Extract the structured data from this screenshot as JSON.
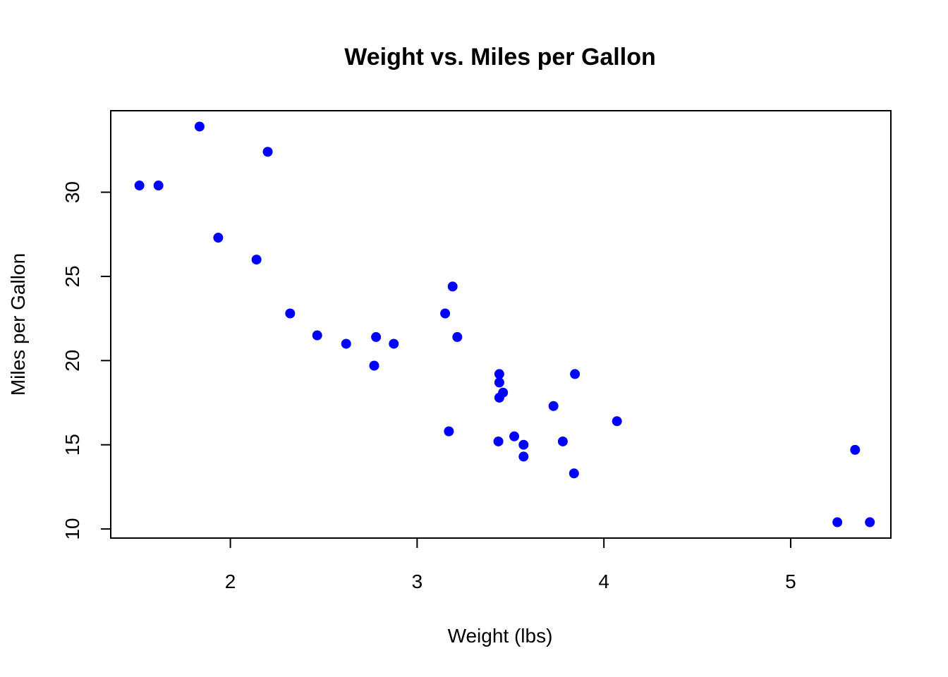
{
  "chart_data": {
    "type": "scatter",
    "title": "Weight vs. Miles per Gallon",
    "xlabel": "Weight (lbs)",
    "ylabel": "Miles per Gallon",
    "xlim": [
      1.3595,
      5.5365
    ],
    "ylim": [
      9.46,
      34.84
    ],
    "x_ticks": [
      2,
      3,
      4,
      5
    ],
    "y_ticks": [
      10,
      15,
      20,
      25,
      30
    ],
    "x_tick_labels": [
      "2",
      "3",
      "4",
      "5"
    ],
    "y_tick_labels": [
      "10",
      "15",
      "20",
      "25",
      "30"
    ],
    "grid": false,
    "legend": "none",
    "marker_color": "#0000FF",
    "series": [
      {
        "x": [
          2.62,
          2.875,
          2.32,
          3.215,
          3.44,
          3.46,
          3.57,
          3.19,
          3.15,
          3.44,
          3.44,
          4.07,
          3.73,
          3.78,
          5.25,
          5.424,
          5.345,
          2.2,
          1.615,
          1.835,
          2.465,
          3.52,
          3.435,
          3.84,
          3.845,
          1.935,
          2.14,
          1.513,
          3.17,
          2.77,
          3.57,
          2.78
        ],
        "y": [
          21.0,
          21.0,
          22.8,
          21.4,
          18.7,
          18.1,
          14.3,
          24.4,
          22.8,
          19.2,
          17.8,
          16.4,
          17.3,
          15.2,
          10.4,
          10.4,
          14.7,
          32.4,
          30.4,
          33.9,
          21.5,
          15.5,
          15.2,
          13.3,
          19.2,
          27.3,
          26.0,
          30.4,
          15.8,
          19.7,
          15.0,
          21.4
        ]
      }
    ]
  }
}
